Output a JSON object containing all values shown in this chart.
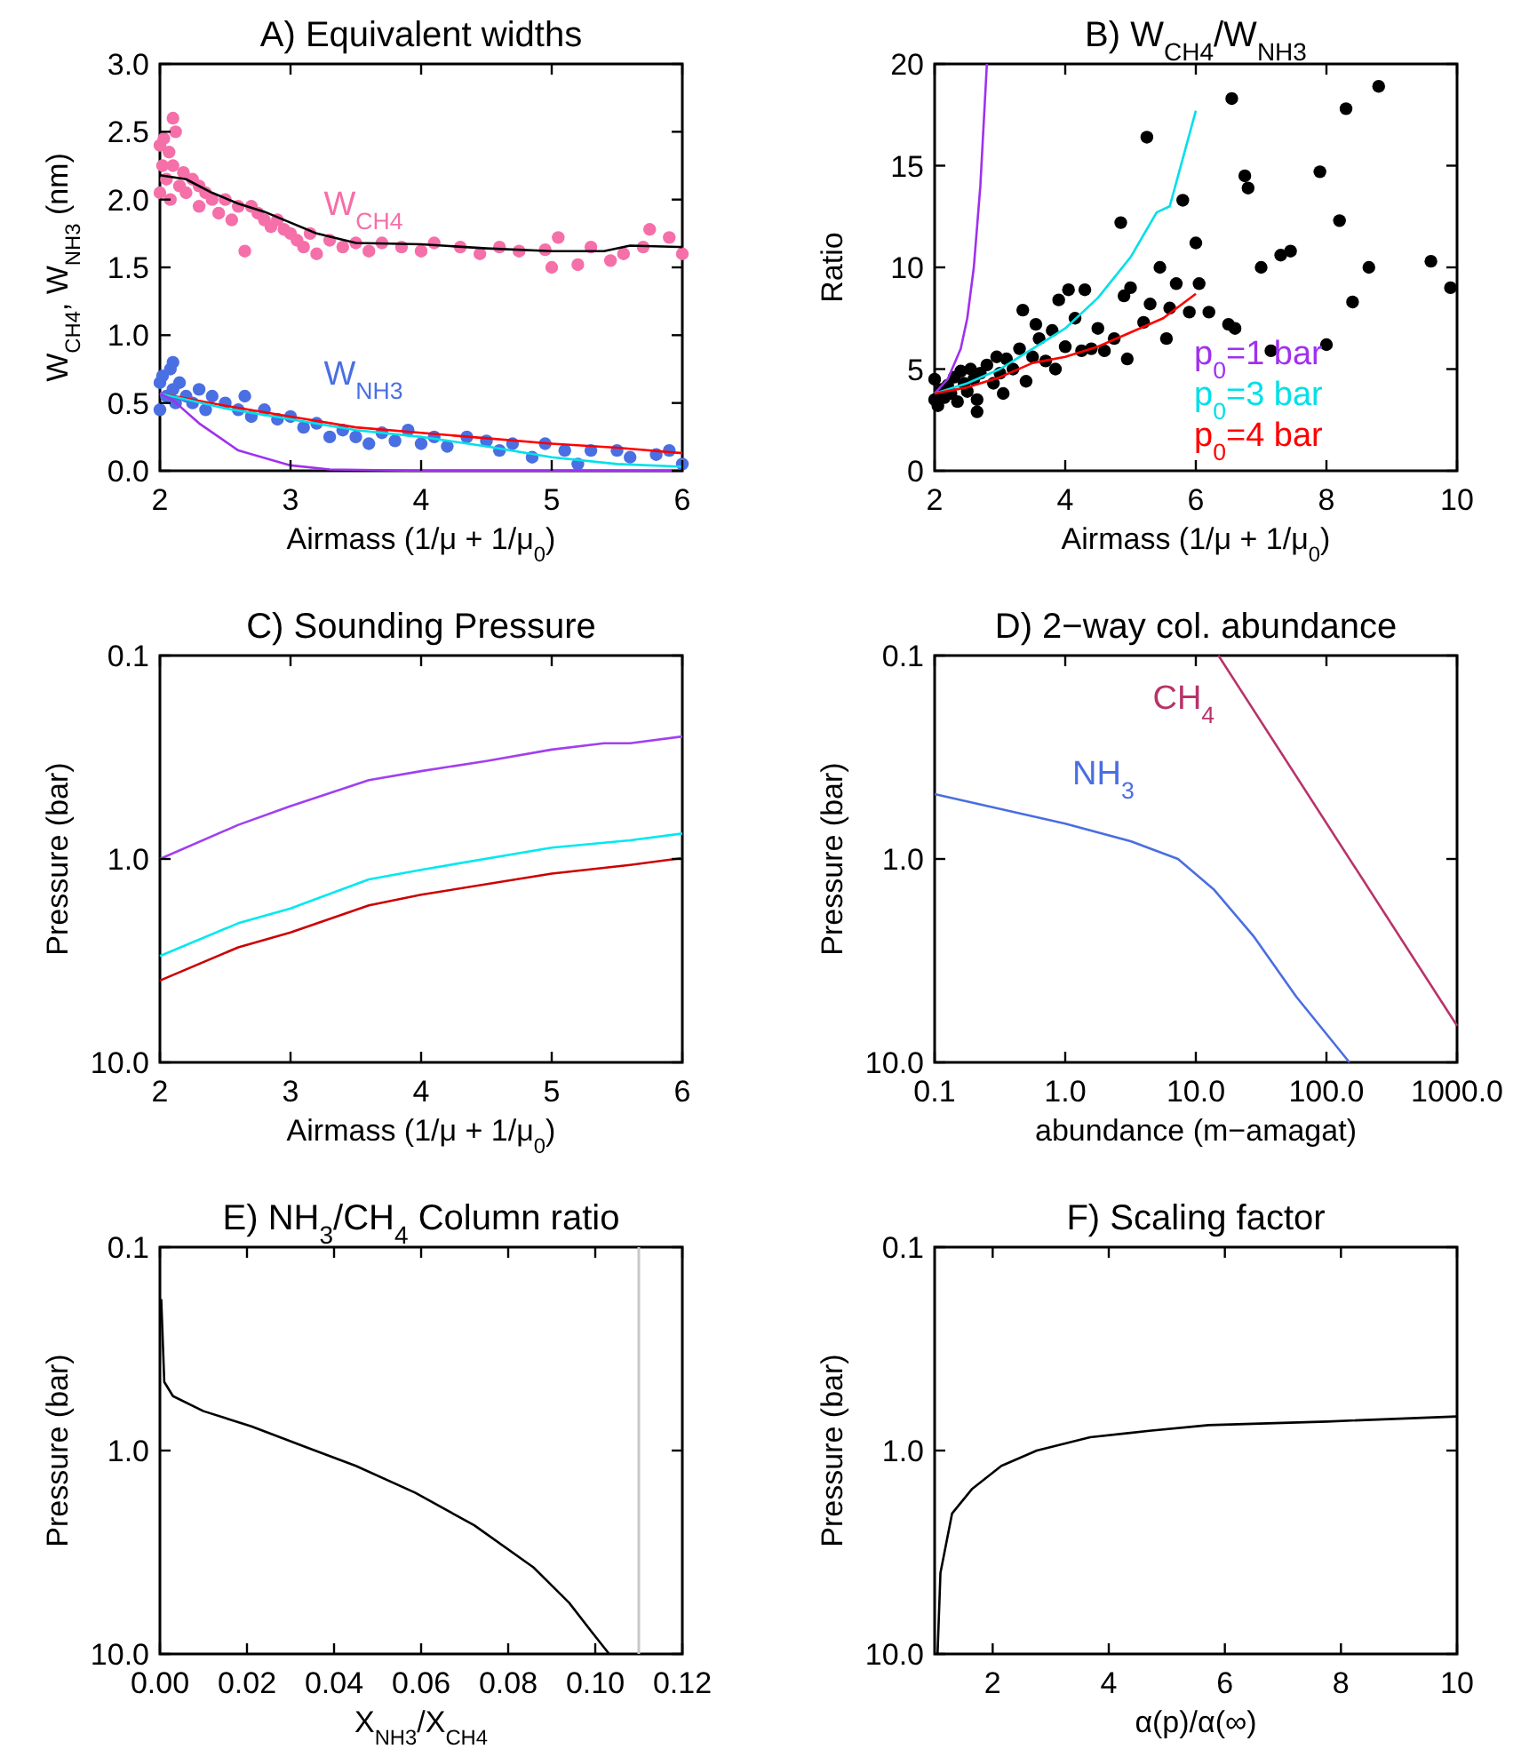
{
  "chart_data": [
    {
      "type": "scatter",
      "title": "A) Equivalent widths",
      "xlabel": "Airmass (1/μ + 1/μ$_{0}$)",
      "ylabel": "W$_{CH4}$, W$_{NH3}$ (nm)",
      "xlim": [
        2,
        6
      ],
      "ylim": [
        0,
        3
      ],
      "xticks": [
        2,
        3,
        4,
        5,
        6
      ],
      "yticks": [
        {
          "value": 0,
          "label": "0.0"
        },
        {
          "value": 0.5,
          "label": "0.5"
        },
        {
          "value": 1,
          "label": "1.0"
        },
        {
          "value": 1.5,
          "label": "1.5"
        },
        {
          "value": 2,
          "label": "2.0"
        },
        {
          "value": 2.5,
          "label": "2.5"
        },
        {
          "value": 3,
          "label": "3.0"
        }
      ],
      "series": [
        {
          "name": "W$_{CH4}$",
          "marker": "circle",
          "color": "#f56fa9",
          "x": [
            2.0,
            2.0,
            2.02,
            2.03,
            2.05,
            2.07,
            2.08,
            2.1,
            2.1,
            2.12,
            2.15,
            2.18,
            2.2,
            2.25,
            2.3,
            2.3,
            2.35,
            2.4,
            2.45,
            2.5,
            2.55,
            2.6,
            2.65,
            2.7,
            2.75,
            2.8,
            2.85,
            2.9,
            2.95,
            3.0,
            3.05,
            3.1,
            3.15,
            3.2,
            3.3,
            3.4,
            3.5,
            3.6,
            3.7,
            3.85,
            4.0,
            4.1,
            4.3,
            4.45,
            4.6,
            4.75,
            4.95,
            5.0,
            5.05,
            5.2,
            5.3,
            5.45,
            5.55,
            5.7,
            5.75,
            5.9,
            6.0
          ],
          "values": [
            2.4,
            2.05,
            2.25,
            2.45,
            2.15,
            2.35,
            2.0,
            2.6,
            2.25,
            2.5,
            2.1,
            2.2,
            2.05,
            2.15,
            1.95,
            2.1,
            2.05,
            2.0,
            1.9,
            2.0,
            1.85,
            1.95,
            1.62,
            1.95,
            1.9,
            1.85,
            1.8,
            1.85,
            1.78,
            1.75,
            1.7,
            1.65,
            1.75,
            1.6,
            1.7,
            1.65,
            1.68,
            1.62,
            1.68,
            1.65,
            1.62,
            1.68,
            1.65,
            1.6,
            1.65,
            1.62,
            1.63,
            1.5,
            1.72,
            1.52,
            1.65,
            1.55,
            1.6,
            1.65,
            1.78,
            1.72,
            1.6
          ]
        },
        {
          "type": "line",
          "color": "#000000",
          "x": [
            2,
            2.2,
            2.4,
            2.6,
            2.8,
            3.0,
            3.2,
            3.5,
            4.0,
            4.5,
            5.0,
            5.4,
            5.6,
            6.0
          ],
          "values": [
            2.18,
            2.15,
            2.05,
            1.97,
            1.91,
            1.83,
            1.75,
            1.68,
            1.67,
            1.64,
            1.62,
            1.62,
            1.66,
            1.65
          ]
        },
        {
          "name": "W$_{NH3}$",
          "marker": "circle",
          "color": "#4a6fe3",
          "x": [
            2.0,
            2.0,
            2.02,
            2.05,
            2.08,
            2.1,
            2.1,
            2.12,
            2.15,
            2.2,
            2.25,
            2.3,
            2.35,
            2.4,
            2.5,
            2.6,
            2.65,
            2.7,
            2.8,
            2.9,
            3.0,
            3.1,
            3.2,
            3.3,
            3.4,
            3.5,
            3.6,
            3.7,
            3.8,
            3.9,
            4.0,
            4.1,
            4.2,
            4.35,
            4.5,
            4.6,
            4.7,
            4.85,
            4.95,
            5.1,
            5.2,
            5.3,
            5.5,
            5.6,
            5.8,
            5.9,
            6.0
          ],
          "values": [
            0.65,
            0.45,
            0.7,
            0.55,
            0.75,
            0.8,
            0.6,
            0.5,
            0.65,
            0.55,
            0.5,
            0.6,
            0.45,
            0.55,
            0.5,
            0.45,
            0.55,
            0.4,
            0.45,
            0.38,
            0.4,
            0.32,
            0.35,
            0.25,
            0.3,
            0.25,
            0.2,
            0.28,
            0.22,
            0.3,
            0.2,
            0.25,
            0.18,
            0.25,
            0.22,
            0.15,
            0.2,
            0.1,
            0.2,
            0.15,
            0.05,
            0.15,
            0.15,
            0.1,
            0.12,
            0.15,
            0.05
          ]
        },
        {
          "type": "line",
          "color": "#ff0000",
          "x": [
            2,
            2.5,
            3,
            3.5,
            4,
            4.5,
            5,
            5.5,
            6
          ],
          "values": [
            0.57,
            0.48,
            0.4,
            0.32,
            0.28,
            0.24,
            0.2,
            0.17,
            0.13
          ]
        },
        {
          "type": "line",
          "color": "#00e0e8",
          "x": [
            2,
            2.5,
            3,
            3.5,
            4,
            4.5,
            5,
            5.5,
            6
          ],
          "values": [
            0.57,
            0.46,
            0.38,
            0.3,
            0.25,
            0.18,
            0.1,
            0.05,
            0.03
          ]
        },
        {
          "type": "line",
          "color": "#a030f0",
          "x": [
            2,
            2.1,
            2.3,
            2.6,
            3,
            3.3,
            4,
            6
          ],
          "values": [
            0.57,
            0.52,
            0.35,
            0.15,
            0.04,
            0.01,
            0,
            0
          ]
        }
      ]
    },
    {
      "type": "scatter",
      "title": "B) W$_{CH4}$/W$_{NH3}$",
      "xlabel": "Airmass (1/μ + 1/μ$_{0}$)",
      "ylabel": "Ratio",
      "xlim": [
        2,
        10
      ],
      "ylim": [
        0,
        20
      ],
      "xticks": [
        2,
        4,
        6,
        8,
        10
      ],
      "yticks": [
        0,
        5,
        10,
        15,
        20
      ],
      "legend": "bottom right",
      "series": [
        {
          "marker": "circle",
          "color": "#000000",
          "x": [
            2.0,
            2.0,
            2.05,
            2.1,
            2.15,
            2.2,
            2.25,
            2.3,
            2.35,
            2.4,
            2.45,
            2.5,
            2.55,
            2.6,
            2.65,
            2.65,
            2.7,
            2.8,
            2.9,
            2.95,
            3.0,
            3.05,
            3.1,
            3.2,
            3.3,
            3.35,
            3.4,
            3.5,
            3.55,
            3.6,
            3.7,
            3.8,
            3.85,
            3.9,
            4.0,
            4.05,
            4.15,
            4.25,
            4.3,
            4.4,
            4.5,
            4.6,
            4.75,
            4.85,
            4.9,
            4.95,
            5.0,
            5.2,
            5.25,
            5.3,
            5.45,
            5.55,
            5.6,
            5.7,
            5.8,
            5.9,
            6.0,
            6.05,
            6.2,
            6.5,
            6.55,
            6.6,
            6.75,
            6.8,
            7.0,
            7.15,
            7.3,
            7.45,
            7.9,
            8.0,
            8.2,
            8.3,
            8.4,
            8.65,
            8.8,
            9.6,
            9.9
          ],
          "values": [
            3.5,
            4.5,
            3.2,
            4.0,
            3.6,
            4.2,
            3.8,
            4.6,
            3.4,
            4.9,
            4.3,
            3.9,
            5.0,
            4.5,
            3.5,
            2.9,
            4.8,
            5.2,
            4.3,
            5.6,
            4.8,
            3.8,
            5.5,
            5.0,
            6.0,
            7.9,
            4.4,
            5.6,
            7.2,
            6.5,
            5.4,
            6.9,
            5.0,
            8.4,
            6.1,
            8.9,
            7.5,
            5.9,
            8.9,
            6.0,
            7.0,
            5.9,
            6.5,
            12.2,
            8.6,
            5.5,
            9.0,
            7.3,
            16.4,
            8.2,
            10.0,
            6.5,
            8.0,
            9.2,
            13.3,
            7.8,
            11.2,
            9.2,
            7.8,
            7.2,
            18.3,
            7.0,
            14.5,
            13.9,
            10.0,
            5.9,
            10.6,
            10.8,
            14.7,
            6.2,
            12.3,
            17.8,
            8.3,
            10.0,
            18.9,
            10.3,
            9.0
          ]
        },
        {
          "type": "line",
          "name": "p$_{0}$=1 bar",
          "color": "#a030f0",
          "x": [
            2,
            2.2,
            2.4,
            2.5,
            2.6,
            2.7,
            2.8
          ],
          "values": [
            3.8,
            4.5,
            6,
            7.5,
            10,
            14,
            20
          ]
        },
        {
          "type": "line",
          "name": "p$_{0}$=3 bar",
          "color": "#00e0e8",
          "x": [
            2,
            2.5,
            3,
            3.5,
            4,
            4.5,
            5,
            5.4,
            5.6,
            6
          ],
          "values": [
            3.8,
            4.3,
            5,
            6,
            7,
            8.5,
            10.5,
            12.7,
            13,
            17.7
          ]
        },
        {
          "type": "line",
          "name": "p$_{0}$=4 bar",
          "color": "#ff0000",
          "x": [
            2,
            2.5,
            3,
            3.5,
            4,
            4.5,
            5,
            5.5,
            6
          ],
          "values": [
            3.8,
            4.1,
            4.6,
            5.3,
            5.6,
            6.1,
            6.8,
            7.5,
            8.7
          ]
        }
      ]
    },
    {
      "type": "line",
      "title": "C) Sounding Pressure",
      "xlabel": "Airmass (1/μ + 1/μ$_{0}$)",
      "ylabel": "Pressure (bar)",
      "log": "y",
      "xlim": [
        2,
        6
      ],
      "ylim": [
        10,
        0.1
      ],
      "xticks": [
        2,
        3,
        4,
        5,
        6
      ],
      "yticks": [
        0.1,
        {
          "value": 1,
          "label": "1.0"
        },
        {
          "value": 10,
          "label": "10.0"
        }
      ],
      "series": [
        {
          "color": "#a040f0",
          "x": [
            2,
            2.6,
            3.0,
            3.6,
            4.0,
            4.5,
            5,
            5.4,
            5.6,
            6
          ],
          "values": [
            1.0,
            0.68,
            0.55,
            0.41,
            0.37,
            0.33,
            0.29,
            0.27,
            0.27,
            0.25
          ]
        },
        {
          "color": "#00e8f0",
          "x": [
            2,
            2.6,
            3,
            3.6,
            4,
            5,
            5.6,
            6
          ],
          "values": [
            3.0,
            2.07,
            1.75,
            1.26,
            1.13,
            0.88,
            0.81,
            0.75
          ]
        },
        {
          "color": "#cc0000",
          "x": [
            2,
            2.6,
            3,
            3.6,
            4,
            5,
            5.6,
            6
          ],
          "values": [
            3.96,
            2.72,
            2.3,
            1.69,
            1.5,
            1.18,
            1.07,
            0.99
          ]
        }
      ]
    },
    {
      "type": "line",
      "title": "D) 2−way col. abundance",
      "xlabel": "abundance (m−amagat)",
      "ylabel": "Pressure (bar)",
      "log": "xy",
      "xlim": [
        0.1,
        1000
      ],
      "ylim": [
        10,
        0.1
      ],
      "xticks": [
        0.1,
        {
          "value": 1,
          "label": "1.0"
        },
        {
          "value": 10,
          "label": "10.0"
        },
        {
          "value": 100,
          "label": "100.0"
        },
        {
          "value": 1000,
          "label": "1000.0"
        }
      ],
      "yticks": [
        0.1,
        {
          "value": 1,
          "label": "1.0"
        },
        {
          "value": 10,
          "label": "10.0"
        }
      ],
      "series": [
        {
          "name": "NH$_{3}$",
          "color": "#4a6ee0",
          "x": [
            0.1,
            1.0,
            3.2,
            7.3,
            13.7,
            28,
            58.7,
            150
          ],
          "values": [
            0.48,
            0.67,
            0.82,
            1.0,
            1.41,
            2.42,
            4.75,
            10
          ]
        },
        {
          "name": "CH$_{4}$",
          "color": "#b8336a",
          "x": [
            14.9,
            1000
          ],
          "values": [
            0.1,
            6.6
          ]
        }
      ]
    },
    {
      "type": "line",
      "title": "E) NH$_{3}$/CH$_{4}$ Column ratio",
      "xlabel": "X$_{NH3}$/X$_{CH4}$",
      "ylabel": "Pressure (bar)",
      "log": "y",
      "xlim": [
        0,
        0.12
      ],
      "ylim": [
        10,
        0.1
      ],
      "xticks": [
        {
          "value": 0,
          "label": "0.00"
        },
        {
          "value": 0.02,
          "label": "0.02"
        },
        {
          "value": 0.04,
          "label": "0.04"
        },
        {
          "value": 0.06,
          "label": "0.06"
        },
        {
          "value": 0.08,
          "label": "0.08"
        },
        {
          "value": 0.1,
          "label": "0.10"
        },
        {
          "value": 0.12,
          "label": "0.12"
        }
      ],
      "yticks": [
        0.1,
        {
          "value": 1,
          "label": "1.0"
        },
        {
          "value": 10,
          "label": "10.0"
        }
      ],
      "ref_lines": [
        {
          "axis": "x",
          "value": 0.11,
          "color": "#c8c8c8"
        }
      ],
      "series": [
        {
          "color": "#000000",
          "x": [
            0.0003,
            0.001,
            0.003,
            0.01,
            0.021,
            0.034,
            0.045,
            0.0586,
            0.0722,
            0.0858,
            0.094,
            0.0994,
            0.1032
          ],
          "values": [
            0.18,
            0.46,
            0.54,
            0.64,
            0.76,
            0.97,
            1.19,
            1.61,
            2.33,
            3.75,
            5.6,
            7.9,
            10
          ]
        }
      ]
    },
    {
      "type": "line",
      "title": "F) Scaling factor",
      "xlabel": "α(p)/α(∞)",
      "ylabel": "Pressure (bar)",
      "log": "y",
      "xlim": [
        1,
        10
      ],
      "ylim": [
        10,
        0.1
      ],
      "xticks": [
        2,
        4,
        6,
        8,
        10
      ],
      "yticks": [
        0.1,
        {
          "value": 1,
          "label": "1.0"
        },
        {
          "value": 10,
          "label": "10.0"
        }
      ],
      "series": [
        {
          "color": "#000000",
          "x": [
            1.05,
            1.1,
            1.3,
            1.64,
            2.15,
            2.76,
            3.68,
            4.7,
            5.72,
            7.76,
            10
          ],
          "values": [
            10,
            4.0,
            2.04,
            1.55,
            1.19,
            1.0,
            0.86,
            0.8,
            0.75,
            0.72,
            0.68
          ]
        }
      ]
    }
  ]
}
